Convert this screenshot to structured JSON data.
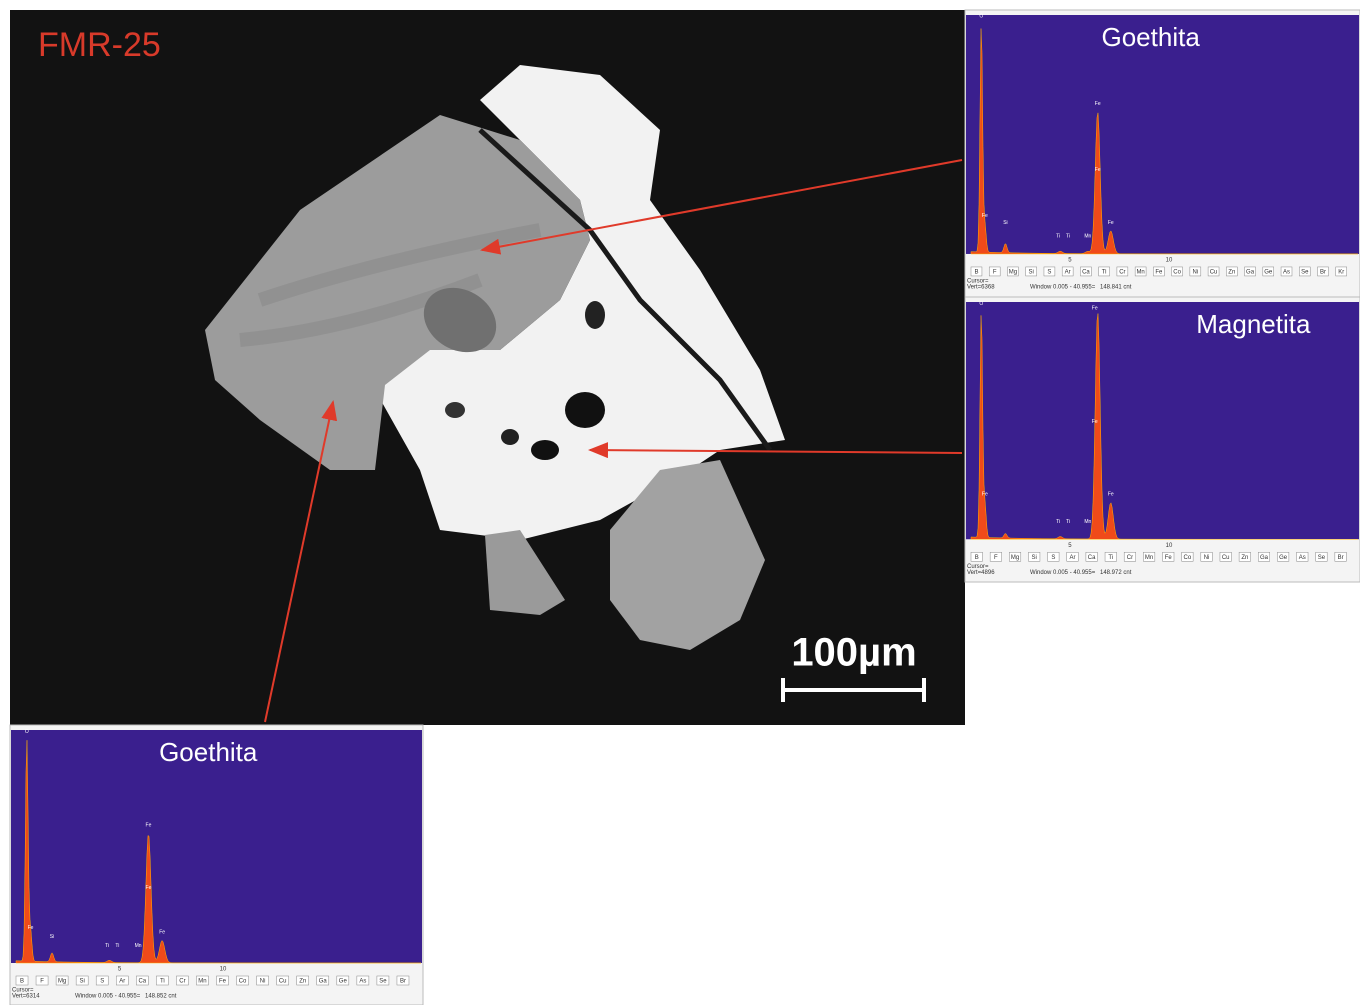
{
  "image": {
    "label": "FMR-25",
    "scale_bar": "100µm"
  },
  "spectra": [
    {
      "title": "Goethita",
      "peak_labels": [
        "O",
        "Fe",
        "Fe",
        "Fe",
        "Si",
        "Ti",
        "Ti",
        "Mn",
        "Fe"
      ],
      "axis": [
        "5",
        "10"
      ],
      "elements": [
        "B",
        "F",
        "Mg",
        "Si",
        "S",
        "Ar",
        "Ca",
        "Ti",
        "Cr",
        "Mn",
        "Fe",
        "Co",
        "Ni",
        "Cu",
        "Zn",
        "Ga",
        "Ge",
        "As",
        "Se",
        "Br",
        "Kr"
      ],
      "cursor": "Cursor=",
      "vert": "Vert=6368",
      "window": "Window 0.005 - 40.955=",
      "counts": "148.841 cnt"
    },
    {
      "title": "Magnetita",
      "peak_labels": [
        "O",
        "Fe",
        "Fe",
        "Fe",
        "Ti",
        "Ti",
        "Mn",
        "Fe"
      ],
      "axis": [
        "5",
        "10"
      ],
      "elements": [
        "B",
        "F",
        "Mg",
        "Si",
        "S",
        "Ar",
        "Ca",
        "Ti",
        "Cr",
        "Mn",
        "Fe",
        "Co",
        "Ni",
        "Cu",
        "Zn",
        "Ga",
        "Ge",
        "As",
        "Se",
        "Br"
      ],
      "cursor": "Cursor=",
      "vert": "Vert=4896",
      "window": "Window 0.005 - 40.955=",
      "counts": "148.972 cnt"
    },
    {
      "title": "Goethita",
      "peak_labels": [
        "O",
        "Fe",
        "Fe",
        "Fe",
        "Si",
        "Ti",
        "Ti",
        "Mn",
        "Fe"
      ],
      "axis": [
        "5",
        "10"
      ],
      "elements": [
        "B",
        "F",
        "Mg",
        "Si",
        "S",
        "Ar",
        "Ca",
        "Ti",
        "Cr",
        "Mn",
        "Fe",
        "Co",
        "Ni",
        "Cu",
        "Zn",
        "Ga",
        "Ge",
        "As",
        "Se",
        "Br"
      ],
      "cursor": "Cursor=",
      "vert": "Vert=6314",
      "window": "Window 0.005 - 40.955=",
      "counts": "148.852 cnt"
    }
  ]
}
